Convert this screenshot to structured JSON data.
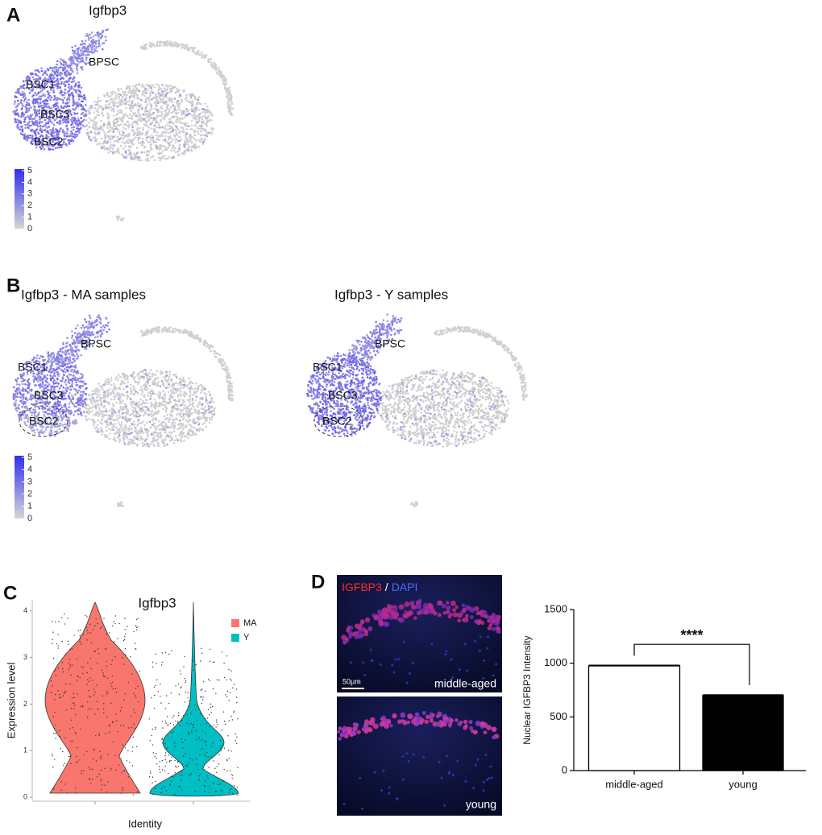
{
  "panel_a": {
    "letter": "A",
    "title": "Igfbp3",
    "clusters": [
      "BPSC",
      "BSC1",
      "BSC3",
      "BSC2"
    ],
    "colorbar_ticks": [
      0,
      1,
      2,
      3,
      4,
      5
    ]
  },
  "panel_b": {
    "letter": "B",
    "plots": [
      {
        "title": "Igfbp3 - MA samples",
        "clusters": [
          "BPSC",
          "BSC1",
          "BSC3",
          "BSC2"
        ]
      },
      {
        "title": "Igfbp3 - Y samples",
        "clusters": [
          "BPSC",
          "BSC1",
          "BSC3",
          "BSC2"
        ]
      }
    ],
    "colorbar_ticks": [
      0,
      1,
      2,
      3,
      4,
      5
    ]
  },
  "panel_c": {
    "letter": "C"
  },
  "panel_d": {
    "letter": "D",
    "image_labels": [
      "IGFBP3",
      "/",
      "DAPI"
    ],
    "scale_bar": "50μm",
    "image_captions": [
      "middle-aged",
      "young"
    ]
  },
  "chart_data": [
    {
      "type": "violin",
      "title": "Igfbp3",
      "x_label": "Identity",
      "y_label": "Expression level",
      "ylim": [
        0,
        4.1
      ],
      "yticks": [
        0,
        1,
        2,
        3,
        4
      ],
      "series": [
        {
          "name": "MA",
          "color": "#f8766d"
        },
        {
          "name": "Y",
          "color": "#00bfc4"
        }
      ]
    },
    {
      "type": "bar",
      "y_label": "Nuclear IGFBP3 Intensity",
      "categories": [
        "middle-aged",
        "young"
      ],
      "values": [
        975,
        700
      ],
      "errors": [
        6,
        6
      ],
      "colors": [
        "#ffffff",
        "#000000"
      ],
      "ylim": [
        0,
        1500
      ],
      "yticks": [
        0,
        500,
        1000,
        1500
      ],
      "annotation": "****"
    }
  ]
}
